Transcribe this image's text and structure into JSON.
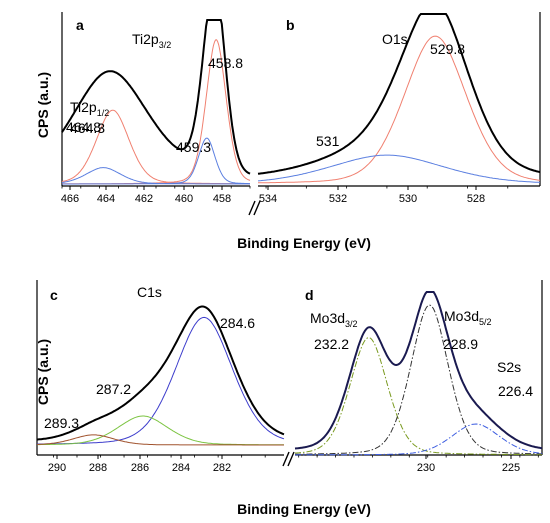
{
  "colors": {
    "envelope": "#000000",
    "blue": "#5b7fe0",
    "red": "#f08070",
    "green": "#7cc442",
    "brown": "#a0522d",
    "dashdot_yellow": "#b8b820",
    "dashdot_black": "#333333"
  },
  "axes": {
    "top_xlabel": "Binding Energy (eV)",
    "bottom_xlabel": "Binding Energy (eV)",
    "top_ylabel": "CPS (a.u.)",
    "bottom_ylabel": "CPS (a.u.)"
  },
  "chart_data": [
    {
      "panel_label": "a",
      "type": "line",
      "xlabel": "Binding Energy (eV)",
      "ylabel": "CPS (a.u.)",
      "xlim": [
        467,
        457
      ],
      "xticks": [
        "466",
        "464",
        "462",
        "460",
        "458"
      ],
      "x_reversed": true,
      "annotations": [
        {
          "base": "Ti2p",
          "sub": "1/2",
          "value": "464.8"
        },
        {
          "text": "464.3"
        },
        {
          "base": "Ti2p",
          "sub": "3/2"
        },
        {
          "text": "458.8"
        },
        {
          "text": "459.3"
        }
      ],
      "series": [
        {
          "kind": "envelope",
          "color": "#000000",
          "peaks": [
            [
              464.3,
              2.2,
              0.55
            ],
            [
              464.8,
              1.6,
              0.12
            ],
            [
              458.8,
              0.55,
              0.98
            ],
            [
              459.3,
              0.55,
              0.3
            ]
          ],
          "baseline": 0.02
        },
        {
          "kind": "component",
          "color": "#f08070",
          "peaks": [
            [
              458.8,
              0.55,
              0.88
            ]
          ],
          "baseline": 0.0
        },
        {
          "kind": "component",
          "color": "#f08070",
          "peaks": [
            [
              464.3,
              0.9,
              0.45
            ]
          ],
          "baseline": 0.0
        },
        {
          "kind": "component",
          "color": "#5b7fe0",
          "peaks": [
            [
              459.3,
              0.45,
              0.28
            ]
          ],
          "baseline": 0.0
        },
        {
          "kind": "component",
          "color": "#5b7fe0",
          "peaks": [
            [
              464.8,
              0.95,
              0.1
            ]
          ],
          "baseline": 0.0
        }
      ]
    },
    {
      "panel_label": "b",
      "type": "line",
      "xlabel": "Binding Energy (eV)",
      "ylabel": "CPS (a.u.)",
      "xlim": [
        534.2,
        527.2
      ],
      "xticks": [
        "534",
        "532",
        "530",
        "528"
      ],
      "x_reversed": true,
      "annotations": [
        {
          "text": "O1s"
        },
        {
          "text": "529.8"
        },
        {
          "text": "531"
        }
      ],
      "series": [
        {
          "kind": "envelope",
          "color": "#000000",
          "peaks": [
            [
              529.8,
              0.85,
              0.92
            ],
            [
              531.0,
              1.5,
              0.18
            ]
          ],
          "baseline": 0.03
        },
        {
          "kind": "component",
          "color": "#f08070",
          "peaks": [
            [
              529.8,
              0.8,
              0.87
            ]
          ],
          "baseline": 0.0
        },
        {
          "kind": "component",
          "color": "#5b7fe0",
          "peaks": [
            [
              531.0,
              1.45,
              0.17
            ]
          ],
          "baseline": 0.0
        }
      ]
    },
    {
      "panel_label": "c",
      "type": "line",
      "xlabel": "Binding Energy (eV)",
      "ylabel": "CPS (a.u.)",
      "xlim": [
        291.7,
        281.2
      ],
      "xticks": [
        "290",
        "288",
        "286",
        "284",
        "282"
      ],
      "x_reversed": true,
      "annotations": [
        {
          "text": "C1s"
        },
        {
          "text": "284.6"
        },
        {
          "text": "287.2"
        },
        {
          "text": "289.3"
        }
      ],
      "series": [
        {
          "kind": "envelope",
          "color": "#000000",
          "peaks": [
            [
              284.6,
              1.3,
              0.9
            ],
            [
              287.2,
              1.3,
              0.22
            ],
            [
              289.3,
              1.0,
              0.07
            ]
          ],
          "baseline": 0.02
        },
        {
          "kind": "component",
          "color": "#3d3dcc",
          "peaks": [
            [
              284.6,
              1.25,
              0.88
            ]
          ],
          "baseline": 0.0
        },
        {
          "kind": "component",
          "color": "#7cc442",
          "peaks": [
            [
              287.2,
              1.1,
              0.2
            ]
          ],
          "baseline": 0.0
        },
        {
          "kind": "component",
          "color": "#a0522d",
          "peaks": [
            [
              289.3,
              0.9,
              0.07
            ]
          ],
          "baseline": 0.0
        }
      ]
    },
    {
      "panel_label": "d",
      "type": "line",
      "xlabel": "Binding Energy (eV)",
      "ylabel": "CPS (a.u.)",
      "xlim": [
        236.2,
        222.8
      ],
      "xticks": [
        "230",
        "225"
      ],
      "x_reversed": true,
      "annotations": [
        {
          "base": "Mo3d",
          "sub": "3/2"
        },
        {
          "text": "232.2"
        },
        {
          "base": "Mo3d",
          "sub": "5/2"
        },
        {
          "text": "228.9"
        },
        {
          "text": "S2s"
        },
        {
          "text": "226.4"
        }
      ],
      "series": [
        {
          "kind": "envelope",
          "color": "#1a1a50",
          "peaks": [
            [
              232.2,
              1.1,
              0.73
            ],
            [
              228.9,
              1.1,
              0.93
            ],
            [
              226.4,
              1.4,
              0.2
            ]
          ],
          "baseline": 0.02
        },
        {
          "kind": "dashdot",
          "color": "#7a9a20",
          "peaks": [
            [
              232.2,
              1.05,
              0.72
            ]
          ],
          "baseline": 0.0
        },
        {
          "kind": "dashdot",
          "color": "#333333",
          "peaks": [
            [
              228.9,
              1.05,
              0.92
            ]
          ],
          "baseline": 0.0
        },
        {
          "kind": "dashdot",
          "color": "#3d5de0",
          "peaks": [
            [
              226.4,
              1.35,
              0.19
            ]
          ],
          "baseline": 0.0
        }
      ]
    }
  ]
}
